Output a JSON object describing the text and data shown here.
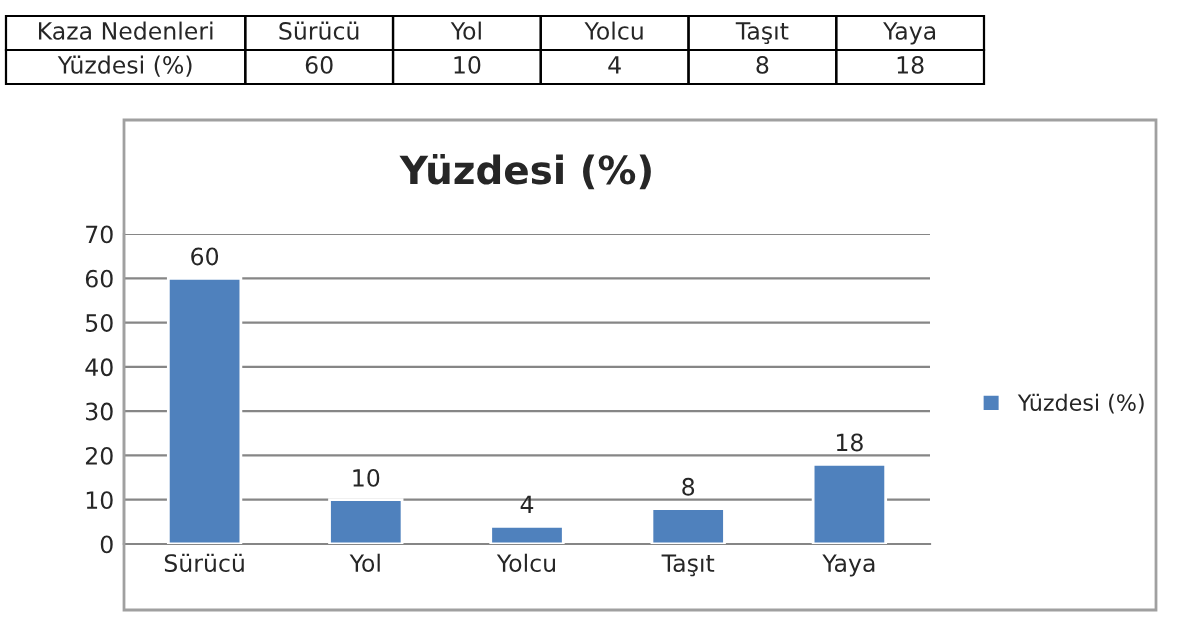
{
  "chart_data": [
    {
      "type": "other",
      "annotations": [
        "Kaza Nedenleri",
        "Yüzdesi (%)"
      ],
      "categories": [
        "Sürücü",
        "Yol",
        "Yolcu",
        "Taşıt",
        "Yaya"
      ],
      "values": [
        60,
        10,
        4,
        8,
        18
      ],
      "data_labels": true
    },
    {
      "type": "bar",
      "title": "Yüzdesi (%)",
      "categories": [
        "Sürücü",
        "Yol",
        "Yolcu",
        "Taşıt",
        "Yaya"
      ],
      "series": [
        {
          "name": "Yüzdesi (%)",
          "color": "#4f81bd",
          "values": [
            60,
            10,
            4,
            8,
            18
          ]
        }
      ],
      "ylim": [
        0,
        70
      ],
      "yticks": [
        0,
        10,
        20,
        30,
        40,
        50,
        60,
        70
      ],
      "grid": "y",
      "legend": "right",
      "data_labels": true
    }
  ]
}
